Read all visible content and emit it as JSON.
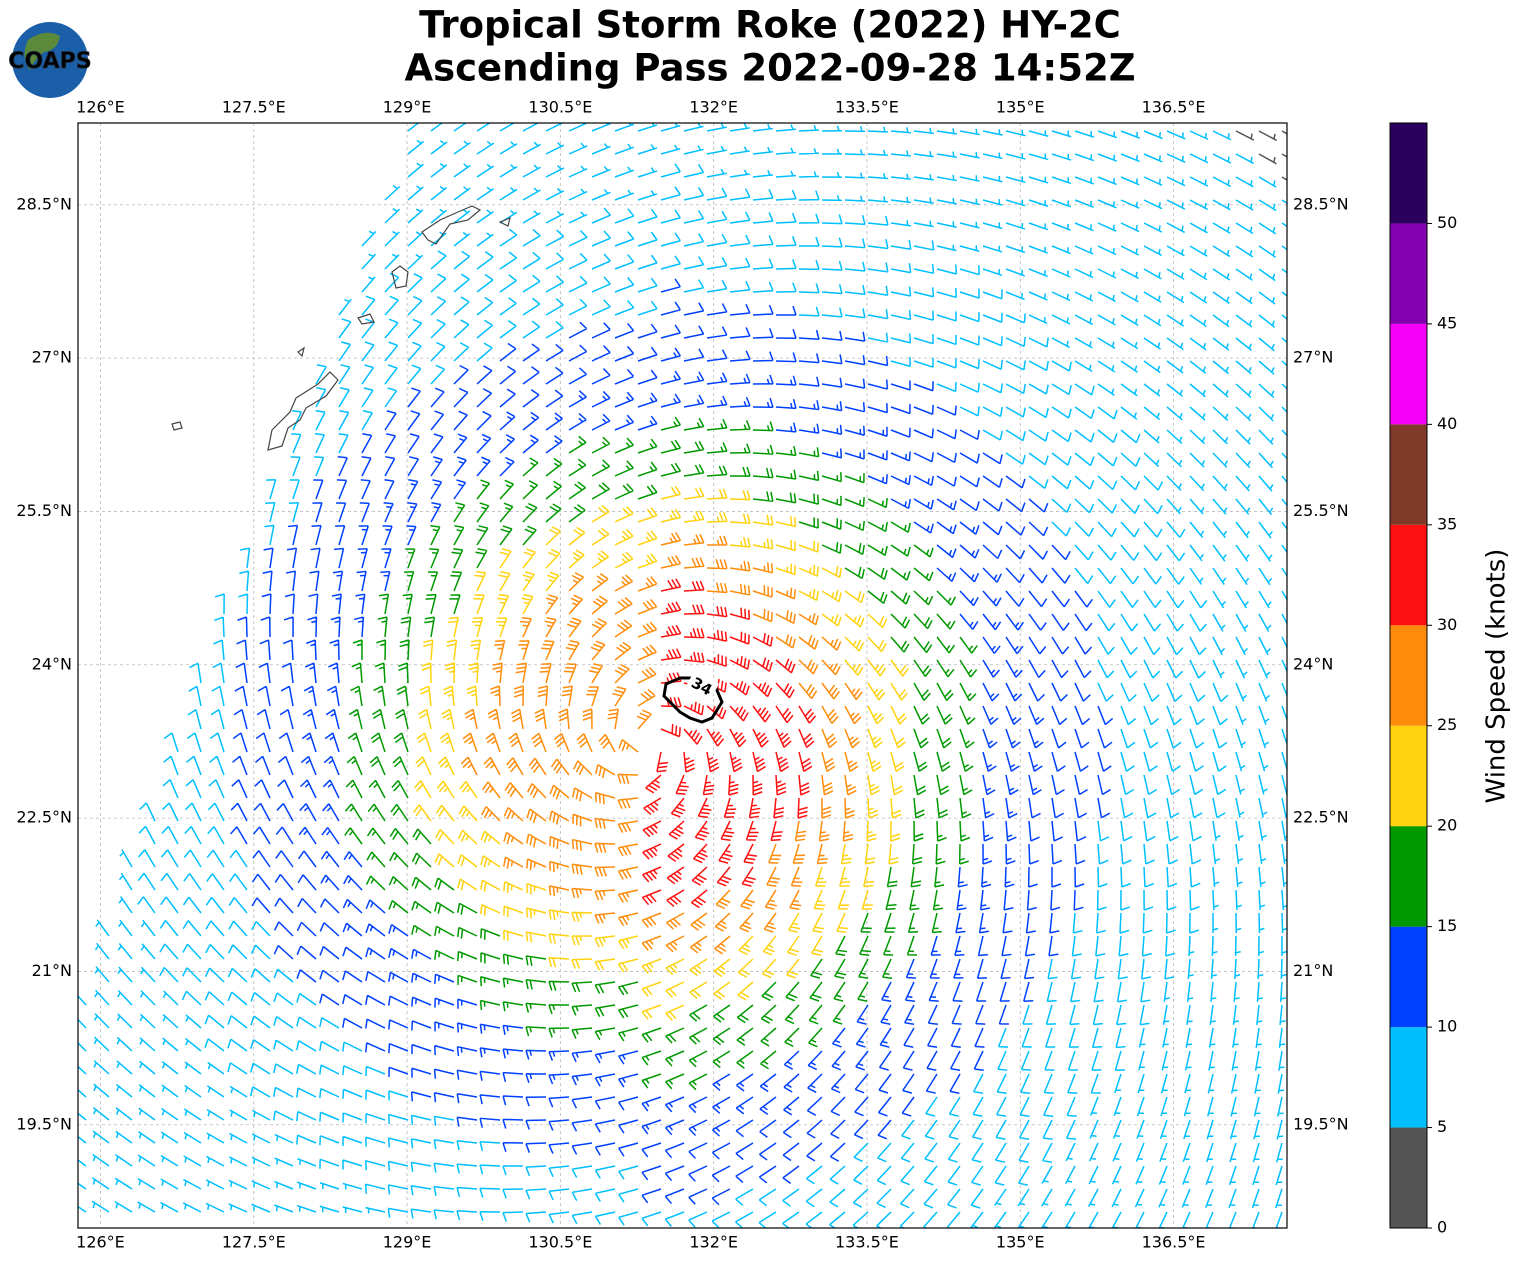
{
  "chart_data": {
    "type": "wind-barb-map",
    "logo": "COAPS",
    "title": "Tropical Storm Roke (2022) HY-2C",
    "subtitle": "Ascending Pass 2022-09-28 14:52Z",
    "xlim": [
      125.78,
      137.61
    ],
    "ylim": [
      18.49,
      29.3
    ],
    "xticks": [
      {
        "value": 126,
        "label": "126°E"
      },
      {
        "value": 127.5,
        "label": "127.5°E"
      },
      {
        "value": 129,
        "label": "129°E"
      },
      {
        "value": 130.5,
        "label": "130.5°E"
      },
      {
        "value": 132,
        "label": "132°E"
      },
      {
        "value": 133.5,
        "label": "133.5°E"
      },
      {
        "value": 135,
        "label": "135°E"
      },
      {
        "value": 136.5,
        "label": "136.5°E"
      }
    ],
    "yticks": [
      {
        "value": 19.5,
        "label": "19.5°N"
      },
      {
        "value": 21,
        "label": "21°N"
      },
      {
        "value": 22.5,
        "label": "22.5°N"
      },
      {
        "value": 24,
        "label": "24°N"
      },
      {
        "value": 25.5,
        "label": "25.5°N"
      },
      {
        "value": 27,
        "label": "27°N"
      },
      {
        "value": 28.5,
        "label": "28.5°N"
      }
    ],
    "grid": true,
    "contour_label": 34,
    "colorbar": {
      "label": "Wind Speed (knots)",
      "bounds": [
        0,
        5,
        10,
        15,
        20,
        25,
        30,
        35,
        40,
        45,
        50,
        55
      ],
      "colors": [
        "#555555",
        "#00bfff",
        "#0040ff",
        "#009900",
        "#ffd20f",
        "#ff8c0a",
        "#ff1010",
        "#7f3a2a",
        "#f700f7",
        "#8300b0",
        "#2c005e"
      ],
      "ticks": [
        0,
        5,
        10,
        15,
        20,
        25,
        30,
        35,
        40,
        45,
        50
      ]
    }
  }
}
